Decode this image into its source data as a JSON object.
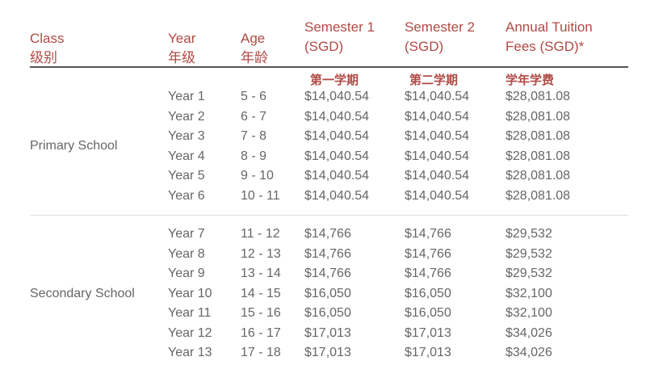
{
  "header": {
    "class": {
      "en": "Class",
      "cn": "级别"
    },
    "year": {
      "en": "Year",
      "cn": "年级"
    },
    "age": {
      "en": "Age",
      "cn": "年龄"
    },
    "sem1": {
      "line1": "Semester 1",
      "line2": "(SGD)",
      "cn": "第一学期"
    },
    "sem2": {
      "line1": "Semester 2",
      "line2": "(SGD)",
      "cn": "第二学期"
    },
    "annual": {
      "line1": "Annual Tuition",
      "line2": "Fees (SGD)*",
      "cn": "学年学费"
    }
  },
  "sections": [
    {
      "label": "Primary School",
      "rows": [
        {
          "year": "Year 1",
          "age": "5 - 6",
          "sem1": "$14,040.54",
          "sem2": "$14,040.54",
          "annual": "$28,081.08"
        },
        {
          "year": "Year 2",
          "age": "6 - 7",
          "sem1": "$14,040.54",
          "sem2": "$14,040.54",
          "annual": "$28,081.08"
        },
        {
          "year": "Year 3",
          "age": "7 - 8",
          "sem1": "$14,040.54",
          "sem2": "$14,040.54",
          "annual": "$28,081.08"
        },
        {
          "year": "Year 4",
          "age": "8 - 9",
          "sem1": "$14,040.54",
          "sem2": "$14,040.54",
          "annual": "$28,081.08"
        },
        {
          "year": "Year 5",
          "age": "9 - 10",
          "sem1": "$14,040.54",
          "sem2": "$14,040.54",
          "annual": "$28,081.08"
        },
        {
          "year": "Year 6",
          "age": "10 - 11",
          "sem1": "$14,040.54",
          "sem2": "$14,040.54",
          "annual": "$28,081.08"
        }
      ]
    },
    {
      "label": "Secondary School",
      "rows": [
        {
          "year": "Year 7",
          "age": "11 - 12",
          "sem1": "$14,766",
          "sem2": "$14,766",
          "annual": "$29,532"
        },
        {
          "year": "Year 8",
          "age": "12 - 13",
          "sem1": "$14,766",
          "sem2": "$14,766",
          "annual": "$29,532"
        },
        {
          "year": "Year 9",
          "age": "13 - 14",
          "sem1": "$14,766",
          "sem2": "$14,766",
          "annual": "$29,532"
        },
        {
          "year": "Year 10",
          "age": "14 - 15",
          "sem1": "$16,050",
          "sem2": "$16,050",
          "annual": "$32,100"
        },
        {
          "year": "Year 11",
          "age": "15 - 16",
          "sem1": "$16,050",
          "sem2": "$16,050",
          "annual": "$32,100"
        },
        {
          "year": "Year 12",
          "age": "16 - 17",
          "sem1": "$17,013",
          "sem2": "$17,013",
          "annual": "$34,026"
        },
        {
          "year": "Year 13",
          "age": "17 - 18",
          "sem1": "$17,013",
          "sem2": "$17,013",
          "annual": "$34,026"
        }
      ]
    }
  ]
}
